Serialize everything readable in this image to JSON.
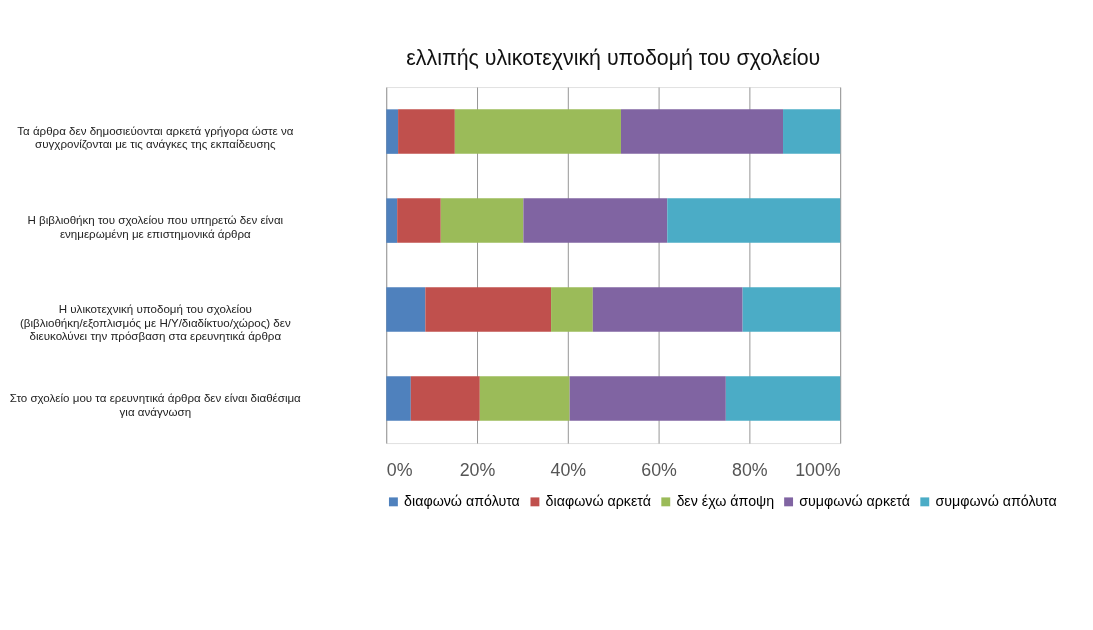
{
  "chart_data": {
    "type": "bar",
    "orientation": "horizontal",
    "stacked": true,
    "title": "ελλιπής υλικοτεχνική υποδομή του σχολείου",
    "categories": [
      "Τα άρθρα δεν δημοσιεύονται αρκετά γρήγορα ώστε να συγχρονίζονται με τις ανάγκες της εκπαίδευσης",
      "Η βιβλιοθήκη του σχολείου που υπηρετώ δεν είναι ενημερωμένη με επιστημονικά άρθρα",
      "Η υλικοτεχνική υποδομή του σχολείου (βιβλιοθήκη/εξοπλισμός με Η/Υ/διαδίκτυο/χώρος) δεν διευκολύνει την πρόσβαση στα ερευνητικά άρθρα",
      "Στο σχολείο μου τα ερευνητικά άρθρα δεν είναι διαθέσιμα για ανάγνωση"
    ],
    "series": [
      {
        "name": "διαφωνώ απόλυτα",
        "color": "#4f81bd",
        "values": [
          2.6,
          2.4,
          8.6,
          5.4
        ]
      },
      {
        "name": "διαφωνώ αρκετά",
        "color": "#c0504d",
        "values": [
          12.5,
          9.6,
          27.7,
          15.2
        ]
      },
      {
        "name": "δεν έχω άποψη",
        "color": "#9bbb59",
        "values": [
          36.6,
          18.2,
          9.2,
          19.8
        ]
      },
      {
        "name": "συμφωνώ αρκετά",
        "color": "#8064a2",
        "values": [
          35.7,
          31.7,
          33.0,
          34.4
        ]
      },
      {
        "name": "συμφωνώ απόλυτα",
        "color": "#4bacc6",
        "values": [
          12.6,
          38.1,
          21.5,
          25.2
        ]
      }
    ],
    "xlim": [
      0,
      100
    ],
    "xticks": [
      {
        "value": 0,
        "label": "0%"
      },
      {
        "value": 20,
        "label": "20%"
      },
      {
        "value": 40,
        "label": "40%"
      },
      {
        "value": 60,
        "label": "60%"
      },
      {
        "value": 80,
        "label": "80%"
      },
      {
        "value": 100,
        "label": "100%"
      }
    ],
    "grid": "x",
    "legend": "bottom"
  }
}
